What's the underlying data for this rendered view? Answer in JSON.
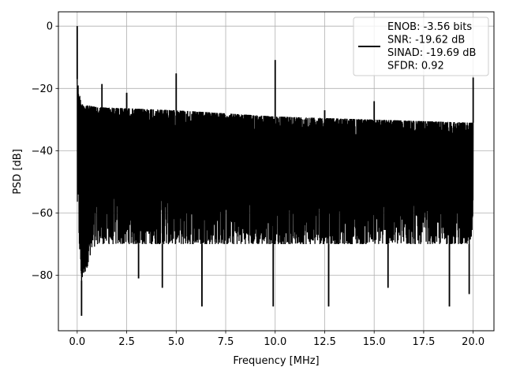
{
  "chart_data": {
    "type": "line",
    "title": "",
    "xlabel": "Frequency [MHz]",
    "ylabel": "PSD [dB]",
    "xlim": [
      -0.95,
      21.05
    ],
    "ylim": [
      -97.8,
      4.6
    ],
    "x_ticks": [
      0.0,
      2.5,
      5.0,
      7.5,
      10.0,
      12.5,
      15.0,
      17.5,
      20.0
    ],
    "x_tick_labels": [
      "0.0",
      "2.5",
      "5.0",
      "7.5",
      "10.0",
      "12.5",
      "15.0",
      "17.5",
      "20.0"
    ],
    "y_ticks": [
      0,
      -20,
      -40,
      -60,
      -80
    ],
    "y_tick_labels": [
      "0",
      "−20",
      "−40",
      "−60",
      "−80"
    ],
    "grid": true,
    "legend_position": "top-right",
    "series": [
      {
        "color": "#000000",
        "noise_envelope": {
          "x": [
            0.0,
            0.2,
            1.0,
            5.0,
            10.0,
            15.0,
            20.0
          ],
          "upper": [
            -17,
            -25,
            -26,
            -27,
            -29,
            -30,
            -31
          ],
          "lower": [
            -57,
            -82,
            -70,
            -70,
            -70,
            -70,
            -70
          ]
        },
        "peaks": {
          "x": [
            0.0,
            1.25,
            2.5,
            5.0,
            10.0,
            12.5,
            15.0,
            20.0
          ],
          "y": [
            0.0,
            -18.6,
            -21.4,
            -15.2,
            -10.9,
            -27.0,
            -24.1,
            -16.5
          ]
        },
        "dips": {
          "x": [
            0.22,
            3.1,
            4.3,
            6.3,
            9.9,
            12.7,
            15.7,
            18.8,
            19.8
          ],
          "y": [
            -93.0,
            -81.0,
            -84.0,
            -90.0,
            -90.0,
            -90.0,
            -84.0,
            -90.0,
            -86.0
          ]
        }
      }
    ],
    "legend_lines": [
      "ENOB: -3.56 bits",
      "SNR: -19.62 dB",
      "SINAD: -19.69 dB",
      "SFDR: 0.92"
    ]
  }
}
